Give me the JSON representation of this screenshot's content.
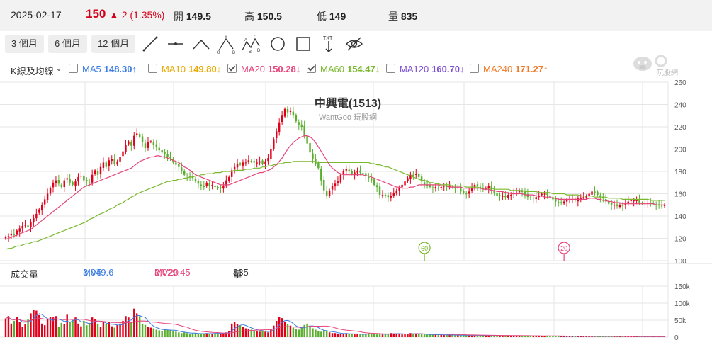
{
  "quote": {
    "date": "2025-02-17",
    "close": "150",
    "change": "▲ 2 (1.35%)",
    "open_label": "開",
    "open_value": "149.5",
    "high_label": "高",
    "high_value": "150.5",
    "low_label": "低",
    "low_value": "149",
    "volume_label": "量",
    "volume_value": "835"
  },
  "periods": [
    "3 個月",
    "6 個月",
    "12 個月"
  ],
  "tools": [
    "line-tool-icon",
    "horizontal-line-tool-icon",
    "triangle-tool-icon",
    "abc-pattern-tool-icon",
    "abcd-pattern-tool-icon",
    "circle-tool-icon",
    "rectangle-tool-icon",
    "text-tool-icon",
    "hide-drawings-icon"
  ],
  "tool_text_label": "TXT",
  "indicator": {
    "label": "K線及均線"
  },
  "ma_legend": [
    {
      "label": "MA5",
      "value": "148.30",
      "arrow": "↑",
      "color": "#3b7de0",
      "checked": false
    },
    {
      "label": "MA10",
      "value": "149.80",
      "arrow": "↓",
      "color": "#e8a900",
      "checked": false
    },
    {
      "label": "MA20",
      "value": "150.28",
      "arrow": "↓",
      "color": "#e6457a",
      "checked": true
    },
    {
      "label": "MA60",
      "value": "154.47",
      "arrow": "↓",
      "color": "#7ab82e",
      "checked": true
    },
    {
      "label": "MA120",
      "value": "160.70",
      "arrow": "↓",
      "color": "#7a4fd0",
      "checked": false
    },
    {
      "label": "MA240",
      "value": "171.27",
      "arrow": "↑",
      "color": "#ee7a2a",
      "checked": false
    }
  ],
  "watermark": {
    "text": "玩股網"
  },
  "volume_legend": {
    "label": "成交量",
    "mv5_label": "MV5",
    "mv5_value": "3,049.6",
    "mv5_arrow": "↓",
    "mv20_label": "MV20",
    "mv20_value": "3,029.45",
    "mv20_arrow": "↓",
    "vol_label": "量",
    "vol_value": "835",
    "vol_arrow": "↓"
  },
  "colors": {
    "up": "#e0001b",
    "down": "#5aae2e",
    "ma20": "#e6457a",
    "ma60": "#7ab82e",
    "mv5": "#3b7de0",
    "mv20": "#e6457a",
    "grid": "#e6e6e6"
  },
  "chart_data": {
    "type": "candlestick",
    "title": "中興電(1513)",
    "subtitle": "WantGoo 玩股網",
    "price_axis": {
      "ticks": [
        100,
        120,
        140,
        160,
        180,
        200,
        220,
        240,
        260
      ],
      "range": [
        100,
        260
      ]
    },
    "volume_axis": {
      "ticks": [
        "0",
        "50k",
        "100k",
        "150k"
      ],
      "range": [
        0,
        150000
      ]
    },
    "markers": [
      {
        "label": "60",
        "index": 150
      },
      {
        "label": "20",
        "index": 200
      }
    ],
    "price_series_close": [
      121,
      122,
      124,
      123,
      127,
      129,
      131,
      132,
      130,
      135,
      138,
      142,
      146,
      150,
      155,
      160,
      165,
      170,
      172,
      169,
      166,
      172,
      174,
      170,
      168,
      171,
      175,
      176,
      172,
      171,
      170,
      177,
      181,
      177,
      184,
      188,
      184,
      190,
      191,
      187,
      189,
      193,
      198,
      204,
      207,
      203,
      212,
      214,
      211,
      206,
      201,
      206,
      207,
      204,
      202,
      199,
      197,
      196,
      193,
      192,
      188,
      186,
      184,
      180,
      177,
      176,
      175,
      174,
      171,
      169,
      167,
      166,
      170,
      167,
      168,
      166,
      165,
      165,
      167,
      172,
      175,
      181,
      184,
      187,
      186,
      188,
      188,
      190,
      189,
      188,
      188,
      189,
      187,
      189,
      192,
      200,
      209,
      216,
      224,
      230,
      236,
      233,
      234,
      230,
      225,
      222,
      220,
      212,
      205,
      197,
      191,
      187,
      183,
      172,
      163,
      158,
      163,
      167,
      169,
      171,
      177,
      180,
      182,
      180,
      178,
      179,
      180,
      179,
      178,
      176,
      174,
      172,
      168,
      166,
      159,
      159,
      158,
      157,
      158,
      161,
      163,
      165,
      168,
      171,
      174,
      177,
      176,
      178,
      175,
      171,
      168,
      167,
      166,
      165,
      166,
      165,
      166,
      167,
      166,
      167,
      166,
      165,
      165,
      162,
      161,
      160,
      162,
      165,
      168,
      167,
      165,
      164,
      165,
      167,
      163,
      161,
      158,
      158,
      158,
      157,
      159,
      159,
      161,
      161,
      163,
      162,
      159,
      157,
      156,
      156,
      157,
      158,
      160,
      160,
      159,
      157,
      155,
      153,
      152,
      152,
      153,
      154,
      155,
      155,
      154,
      156,
      156,
      157,
      158,
      160,
      162,
      161,
      159,
      157,
      156,
      153,
      151,
      150,
      150,
      149,
      150,
      149,
      152,
      153,
      154,
      154,
      154,
      152,
      151,
      152,
      152,
      151,
      151,
      150,
      150,
      149,
      150
    ],
    "ma20_series": [
      119,
      120,
      121,
      122,
      123,
      124,
      125,
      126,
      127,
      128,
      130,
      132,
      134,
      136,
      138,
      140,
      142,
      144,
      146,
      148,
      150,
      152,
      154,
      156,
      158,
      160,
      162,
      164,
      166,
      167,
      168,
      169,
      170,
      171,
      172,
      173,
      174,
      175,
      176,
      177,
      178,
      179,
      180,
      181,
      182,
      183,
      185,
      187,
      189,
      190,
      191,
      192,
      193,
      193,
      194,
      194,
      193,
      193,
      192,
      191,
      190,
      189,
      188,
      186,
      184,
      183,
      181,
      179,
      177,
      176,
      175,
      174,
      173,
      172,
      171,
      170,
      169,
      168,
      168,
      168,
      168,
      169,
      170,
      171,
      172,
      173,
      174,
      175,
      176,
      177,
      178,
      179,
      179,
      180,
      181,
      182,
      184,
      186,
      189,
      192,
      196,
      200,
      203,
      206,
      208,
      210,
      211,
      212,
      212,
      211,
      209,
      206,
      202,
      198,
      194,
      190,
      186,
      183,
      181,
      179,
      178,
      177,
      177,
      177,
      177,
      177,
      177,
      177,
      177,
      176,
      176,
      175,
      174,
      173,
      172,
      171,
      170,
      169,
      168,
      167,
      166,
      166,
      165,
      165,
      165,
      166,
      166,
      167,
      168,
      168,
      168,
      168,
      168,
      168,
      168,
      168,
      167,
      167,
      167,
      166,
      166,
      166,
      166,
      166,
      165,
      165,
      165,
      165,
      165,
      165,
      165,
      164,
      164,
      164,
      163,
      163,
      162,
      162,
      162,
      161,
      161,
      160,
      160,
      160,
      160,
      160,
      159,
      159,
      159,
      159,
      158,
      158,
      158,
      157,
      157,
      157,
      156,
      156,
      155,
      155,
      155,
      155,
      155,
      155,
      155,
      155,
      155,
      155,
      155,
      156,
      156,
      156,
      155,
      155,
      154,
      154,
      153,
      153,
      152,
      152,
      152,
      151,
      151,
      151,
      151,
      151,
      151,
      151,
      151,
      151,
      151,
      151,
      151,
      150,
      150,
      150,
      150
    ],
    "ma60_series": [
      110,
      111,
      111,
      112,
      113,
      113,
      114,
      115,
      115,
      116,
      117,
      117,
      118,
      119,
      120,
      121,
      122,
      123,
      124,
      125,
      126,
      127,
      128,
      129,
      130,
      131,
      132,
      133,
      134,
      135,
      137,
      138,
      139,
      141,
      142,
      143,
      144,
      146,
      147,
      148,
      150,
      151,
      152,
      154,
      155,
      157,
      158,
      160,
      161,
      162,
      163,
      164,
      165,
      166,
      167,
      168,
      169,
      170,
      171,
      171,
      172,
      172,
      173,
      173,
      174,
      174,
      175,
      175,
      176,
      176,
      177,
      177,
      178,
      178,
      178,
      179,
      179,
      179,
      180,
      180,
      180,
      180,
      181,
      181,
      181,
      181,
      182,
      182,
      182,
      183,
      183,
      183,
      184,
      184,
      185,
      185,
      186,
      186,
      187,
      187,
      188,
      188,
      188,
      189,
      189,
      189,
      189,
      189,
      189,
      189,
      189,
      189,
      188,
      188,
      188,
      188,
      188,
      188,
      188,
      188,
      188,
      188,
      188,
      188,
      188,
      188,
      188,
      188,
      188,
      188,
      188,
      187,
      187,
      186,
      186,
      185,
      184,
      184,
      183,
      182,
      181,
      180,
      179,
      178,
      177,
      176,
      175,
      174,
      173,
      172,
      172,
      171,
      170,
      170,
      169,
      169,
      168,
      168,
      168,
      168,
      167,
      167,
      167,
      167,
      167,
      166,
      166,
      166,
      166,
      166,
      165,
      165,
      165,
      165,
      165,
      164,
      164,
      164,
      164,
      164,
      164,
      163,
      163,
      163,
      163,
      163,
      162,
      162,
      162,
      162,
      162,
      161,
      161,
      161,
      161,
      161,
      160,
      160,
      160,
      160,
      160,
      159,
      159,
      159,
      159,
      159,
      158,
      158,
      158,
      158,
      158,
      157,
      157,
      157,
      157,
      157,
      156,
      156,
      156,
      156,
      156,
      155,
      155,
      155,
      155,
      155,
      155,
      155,
      155,
      155,
      155,
      154,
      154,
      154,
      154,
      154,
      154
    ],
    "volume_series": [
      55,
      62,
      40,
      48,
      60,
      45,
      30,
      38,
      52,
      70,
      80,
      78,
      65,
      40,
      35,
      55,
      60,
      58,
      62,
      30,
      42,
      38,
      66,
      44,
      50,
      58,
      40,
      32,
      48,
      35,
      42,
      58,
      52,
      40,
      30,
      46,
      38,
      44,
      32,
      28,
      36,
      40,
      48,
      62,
      58,
      44,
      84,
      70,
      62,
      40,
      36,
      30,
      28,
      26,
      22,
      20,
      18,
      24,
      22,
      20,
      18,
      16,
      14,
      12,
      14,
      12,
      10,
      11,
      12,
      10,
      9,
      10,
      12,
      11,
      10,
      12,
      11,
      10,
      12,
      14,
      18,
      40,
      44,
      38,
      34,
      30,
      26,
      24,
      22,
      20,
      18,
      16,
      18,
      16,
      14,
      22,
      34,
      48,
      60,
      56,
      44,
      38,
      34,
      28,
      24,
      22,
      30,
      36,
      40,
      34,
      26,
      22,
      18,
      16,
      20,
      18,
      14,
      12,
      12,
      10,
      10,
      9,
      12,
      10,
      9,
      8,
      9,
      8,
      8,
      10,
      12,
      10,
      9,
      8,
      9,
      8,
      9,
      10,
      12,
      11,
      10,
      9,
      8,
      9,
      10,
      12,
      11,
      10,
      9,
      8,
      8,
      7,
      8,
      7,
      8,
      6,
      7,
      6,
      6,
      7,
      6,
      5,
      6,
      6,
      5,
      6,
      5,
      5,
      6,
      5,
      5,
      4,
      5,
      4,
      4,
      5,
      4,
      5,
      4,
      4,
      5,
      4,
      4,
      3,
      4,
      4,
      3,
      4,
      3,
      3,
      4,
      3,
      3,
      3,
      4,
      3,
      3,
      3,
      2,
      3,
      3,
      2,
      3,
      3,
      2,
      3,
      2,
      2,
      3,
      2,
      2,
      2,
      3,
      2,
      2,
      2,
      2,
      2,
      2,
      2,
      2,
      2,
      2,
      2,
      2,
      1,
      2,
      1,
      2,
      1,
      2,
      2,
      1,
      2,
      1,
      1,
      1
    ]
  }
}
